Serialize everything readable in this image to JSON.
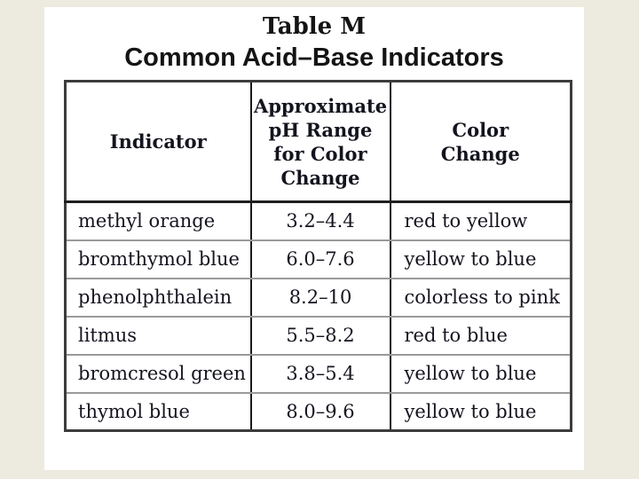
{
  "title": {
    "line1": "Table M",
    "line2": "Common Acid–Base Indicators"
  },
  "table": {
    "headers": {
      "indicator": "Indicator",
      "ph_range": "Approximate\npH Range\nfor Color\nChange",
      "color_change": "Color\nChange"
    },
    "rows": [
      {
        "indicator": "methyl orange",
        "ph_range": "3.2–4.4",
        "color_change": "red to yellow"
      },
      {
        "indicator": "bromthymol blue",
        "ph_range": "6.0–7.6",
        "color_change": "yellow to blue"
      },
      {
        "indicator": "phenolphthalein",
        "ph_range": "8.2–10",
        "color_change": "colorless to pink"
      },
      {
        "indicator": "litmus",
        "ph_range": "5.5–8.2",
        "color_change": "red to blue"
      },
      {
        "indicator": "bromcresol green",
        "ph_range": "3.8–5.4",
        "color_change": "yellow to blue"
      },
      {
        "indicator": "thymol blue",
        "ph_range": "8.0–9.6",
        "color_change": "yellow to blue"
      }
    ]
  },
  "colors": {
    "page_background": "#edeae0",
    "slide_background": "#ffffff",
    "text": "#14141f",
    "outer_border": "#3c3c3c",
    "column_separator": "#1a1a1a",
    "row_separator": "#9a9a9a"
  },
  "chart_data": {
    "type": "table",
    "title": "Table M — Common Acid–Base Indicators",
    "columns": [
      "Indicator",
      "Approximate pH Range for Color Change",
      "Color Change"
    ],
    "rows": [
      [
        "methyl orange",
        "3.2–4.4",
        "red to yellow"
      ],
      [
        "bromthymol blue",
        "6.0–7.6",
        "yellow to blue"
      ],
      [
        "phenolphthalein",
        "8.2–10",
        "colorless to pink"
      ],
      [
        "litmus",
        "5.5–8.2",
        "red to blue"
      ],
      [
        "bromcresol green",
        "3.8–5.4",
        "yellow to blue"
      ],
      [
        "thymol blue",
        "8.0–9.6",
        "yellow to blue"
      ]
    ]
  }
}
